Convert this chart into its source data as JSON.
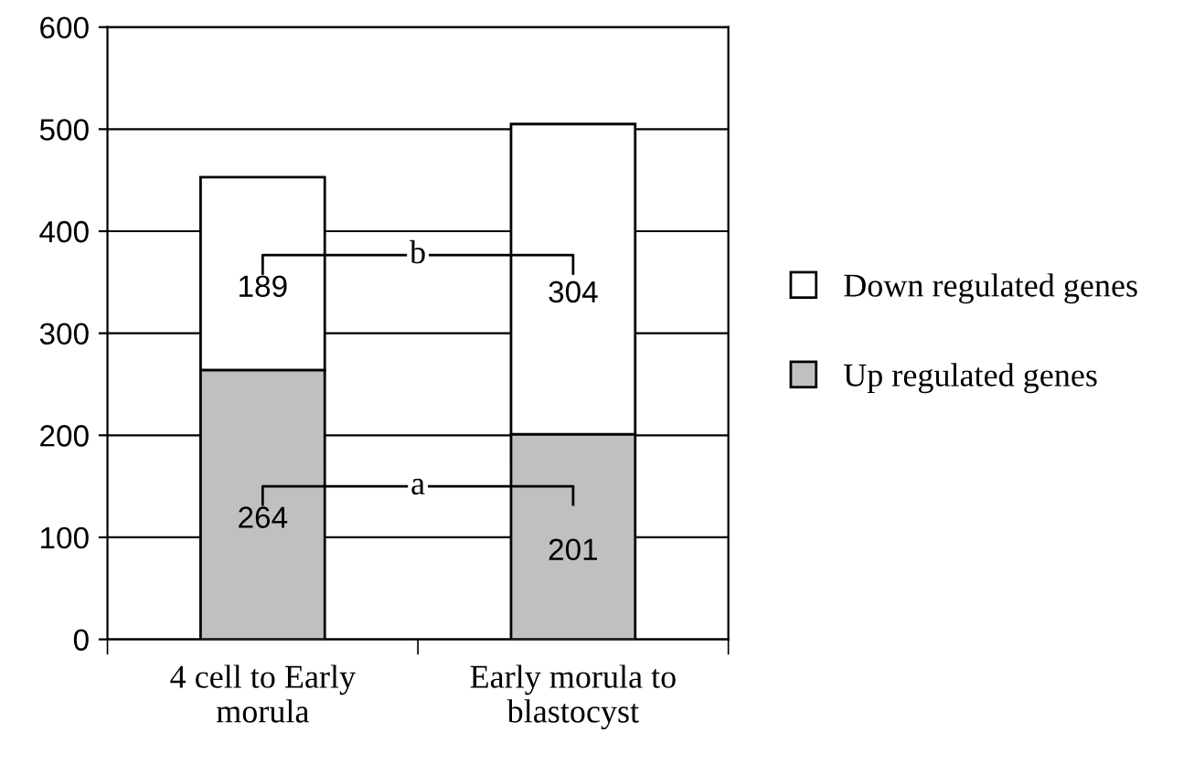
{
  "chart_data": {
    "type": "bar",
    "stacked": true,
    "categories": [
      "4 cell to Early\nmorula",
      "Early morula to\nblastocyst"
    ],
    "series": [
      {
        "name": "Up regulated genes",
        "color": "#c0c0c0",
        "values": [
          264,
          201
        ]
      },
      {
        "name": "Down regulated genes",
        "color": "#ffffff",
        "values": [
          189,
          304
        ]
      }
    ],
    "ylim": [
      0,
      600
    ],
    "yticks": [
      0,
      100,
      200,
      300,
      400,
      500,
      600
    ],
    "grid": "y",
    "legend": "right",
    "data_labels": true,
    "annotations": [
      "a",
      "b"
    ]
  }
}
